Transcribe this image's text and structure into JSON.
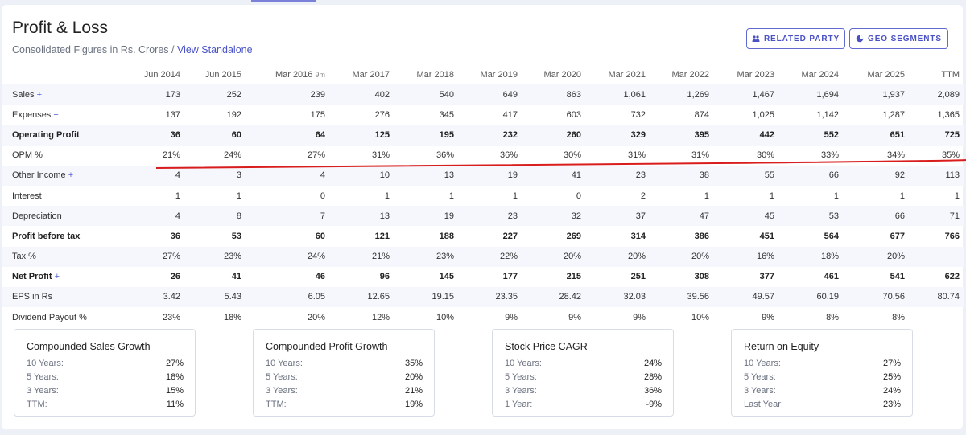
{
  "header": {
    "title": "Profit & Loss",
    "subtitle_prefix": "Consolidated Figures in Rs. Crores / ",
    "subtitle_link": "View Standalone",
    "related_party_label": "RELATED PARTY",
    "geo_segments_label": "GEO SEGMENTS"
  },
  "table": {
    "columns": [
      {
        "label": "Jun 2014",
        "sub": ""
      },
      {
        "label": "Jun 2015",
        "sub": ""
      },
      {
        "label": "Mar 2016",
        "sub": "9m"
      },
      {
        "label": "Mar 2017",
        "sub": ""
      },
      {
        "label": "Mar 2018",
        "sub": ""
      },
      {
        "label": "Mar 2019",
        "sub": ""
      },
      {
        "label": "Mar 2020",
        "sub": ""
      },
      {
        "label": "Mar 2021",
        "sub": ""
      },
      {
        "label": "Mar 2022",
        "sub": ""
      },
      {
        "label": "Mar 2023",
        "sub": ""
      },
      {
        "label": "Mar 2024",
        "sub": ""
      },
      {
        "label": "Mar 2025",
        "sub": ""
      },
      {
        "label": "TTM",
        "sub": ""
      }
    ],
    "rows": [
      {
        "label": "Sales",
        "expandable": true,
        "bold": false,
        "values": [
          "173",
          "252",
          "239",
          "402",
          "540",
          "649",
          "863",
          "1,061",
          "1,269",
          "1,467",
          "1,694",
          "1,937",
          "2,089"
        ]
      },
      {
        "label": "Expenses",
        "expandable": true,
        "bold": false,
        "values": [
          "137",
          "192",
          "175",
          "276",
          "345",
          "417",
          "603",
          "732",
          "874",
          "1,025",
          "1,142",
          "1,287",
          "1,365"
        ]
      },
      {
        "label": "Operating Profit",
        "expandable": false,
        "bold": true,
        "values": [
          "36",
          "60",
          "64",
          "125",
          "195",
          "232",
          "260",
          "329",
          "395",
          "442",
          "552",
          "651",
          "725"
        ]
      },
      {
        "label": "OPM %",
        "expandable": false,
        "bold": false,
        "values": [
          "21%",
          "24%",
          "27%",
          "31%",
          "36%",
          "36%",
          "30%",
          "31%",
          "31%",
          "30%",
          "33%",
          "34%",
          "35%"
        ]
      },
      {
        "label": "Other Income",
        "expandable": true,
        "bold": false,
        "values": [
          "4",
          "3",
          "4",
          "10",
          "13",
          "19",
          "41",
          "23",
          "38",
          "55",
          "66",
          "92",
          "113"
        ]
      },
      {
        "label": "Interest",
        "expandable": false,
        "bold": false,
        "values": [
          "1",
          "1",
          "0",
          "1",
          "1",
          "1",
          "0",
          "2",
          "1",
          "1",
          "1",
          "1",
          "1"
        ]
      },
      {
        "label": "Depreciation",
        "expandable": false,
        "bold": false,
        "values": [
          "4",
          "8",
          "7",
          "13",
          "19",
          "23",
          "32",
          "37",
          "47",
          "45",
          "53",
          "66",
          "71"
        ]
      },
      {
        "label": "Profit before tax",
        "expandable": false,
        "bold": true,
        "values": [
          "36",
          "53",
          "60",
          "121",
          "188",
          "227",
          "269",
          "314",
          "386",
          "451",
          "564",
          "677",
          "766"
        ]
      },
      {
        "label": "Tax %",
        "expandable": false,
        "bold": false,
        "values": [
          "27%",
          "23%",
          "24%",
          "21%",
          "23%",
          "22%",
          "20%",
          "20%",
          "20%",
          "16%",
          "18%",
          "20%",
          ""
        ]
      },
      {
        "label": "Net Profit",
        "expandable": true,
        "bold": true,
        "values": [
          "26",
          "41",
          "46",
          "96",
          "145",
          "177",
          "215",
          "251",
          "308",
          "377",
          "461",
          "541",
          "622"
        ]
      },
      {
        "label": "EPS in Rs",
        "expandable": false,
        "bold": false,
        "values": [
          "3.42",
          "5.43",
          "6.05",
          "12.65",
          "19.15",
          "23.35",
          "28.42",
          "32.03",
          "39.56",
          "49.57",
          "60.19",
          "70.56",
          "80.74"
        ]
      },
      {
        "label": "Dividend Payout %",
        "expandable": false,
        "bold": false,
        "values": [
          "23%",
          "18%",
          "20%",
          "12%",
          "10%",
          "9%",
          "9%",
          "9%",
          "10%",
          "9%",
          "8%",
          "8%",
          ""
        ]
      }
    ],
    "plus_symbol": "+"
  },
  "growth_boxes": [
    {
      "title": "Compounded Sales Growth",
      "rows": [
        {
          "k": "10 Years:",
          "v": "27%"
        },
        {
          "k": "5 Years:",
          "v": "18%"
        },
        {
          "k": "3 Years:",
          "v": "15%"
        },
        {
          "k": "TTM:",
          "v": "11%"
        }
      ]
    },
    {
      "title": "Compounded Profit Growth",
      "rows": [
        {
          "k": "10 Years:",
          "v": "35%"
        },
        {
          "k": "5 Years:",
          "v": "20%"
        },
        {
          "k": "3 Years:",
          "v": "21%"
        },
        {
          "k": "TTM:",
          "v": "19%"
        }
      ]
    },
    {
      "title": "Stock Price CAGR",
      "rows": [
        {
          "k": "10 Years:",
          "v": "24%"
        },
        {
          "k": "5 Years:",
          "v": "28%"
        },
        {
          "k": "3 Years:",
          "v": "36%"
        },
        {
          "k": "1 Year:",
          "v": "-9%"
        }
      ]
    },
    {
      "title": "Return on Equity",
      "rows": [
        {
          "k": "10 Years:",
          "v": "27%"
        },
        {
          "k": "5 Years:",
          "v": "25%"
        },
        {
          "k": "3 Years:",
          "v": "24%"
        },
        {
          "k": "Last Year:",
          "v": "23%"
        }
      ]
    }
  ],
  "colors": {
    "accent": "#4a54c9",
    "annotation_line": "#d91c1c",
    "alt_row": "#f6f7fc"
  },
  "icons": {
    "related_party": "people-icon",
    "geo_segments": "pie-chart-icon"
  }
}
